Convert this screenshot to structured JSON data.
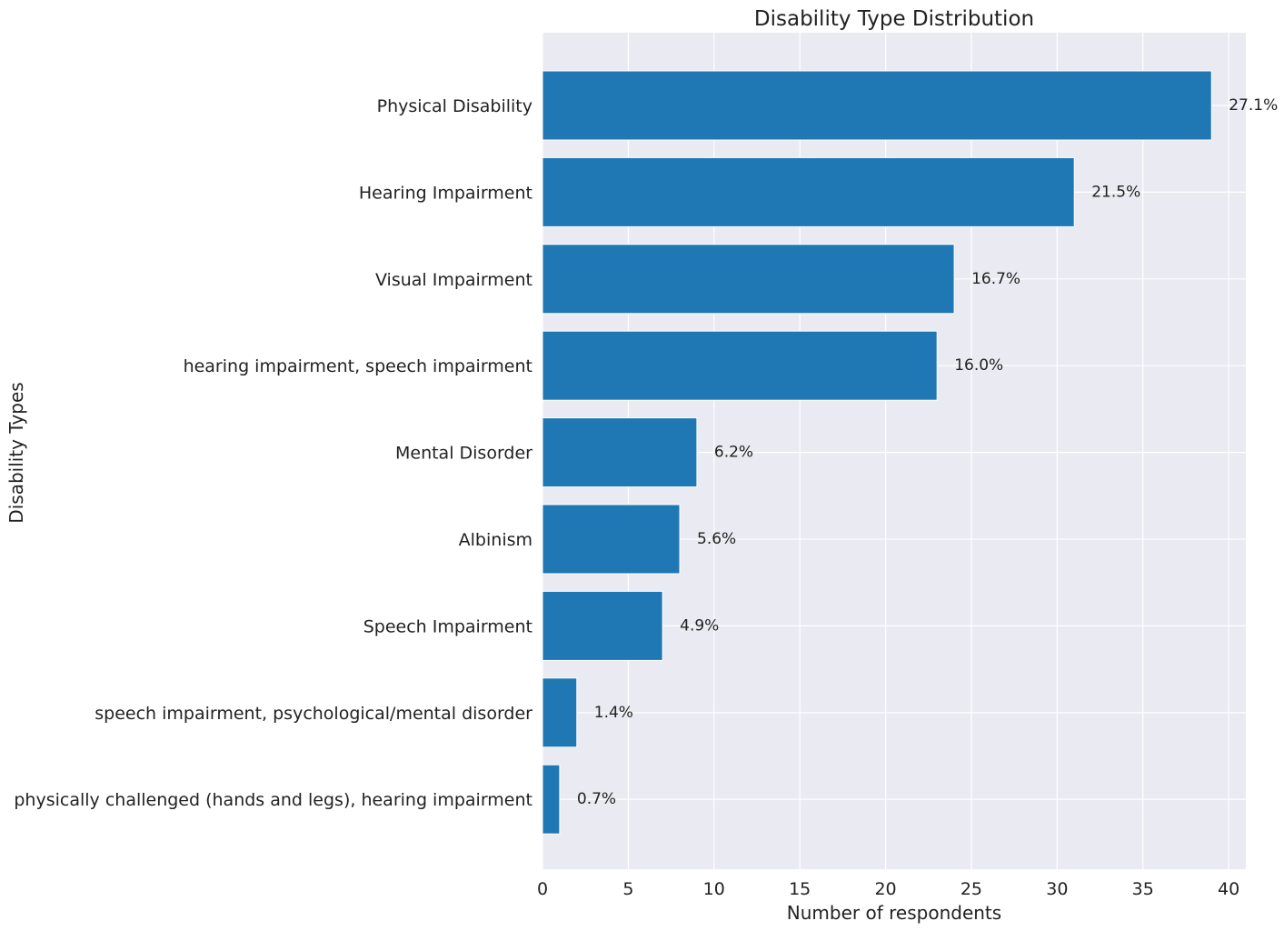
{
  "chart_data": {
    "type": "bar",
    "orientation": "horizontal",
    "title": "Disability Type Distribution",
    "xlabel": "Number of respondents",
    "ylabel": "Disability Types",
    "xlim": [
      0,
      41
    ],
    "xticks": [
      0,
      5,
      10,
      15,
      20,
      25,
      30,
      35,
      40
    ],
    "grid": true,
    "bar_color": "#1f77b4",
    "background_color": "#eaeaf2",
    "categories": [
      "Physical Disability",
      "Hearing Impairment",
      "Visual Impairment",
      "hearing impairment, speech impairment",
      "Mental Disorder",
      "Albinism",
      "Speech Impairment",
      "speech impairment, psychological/mental disorder",
      "physically challenged (hands and legs), hearing impairment"
    ],
    "values": [
      39,
      31,
      24,
      23,
      9,
      8,
      7,
      2,
      1
    ],
    "data_labels": [
      "27.1%",
      "21.5%",
      "16.7%",
      "16.0%",
      "6.2%",
      "5.6%",
      "4.9%",
      "1.4%",
      "0.7%"
    ]
  }
}
